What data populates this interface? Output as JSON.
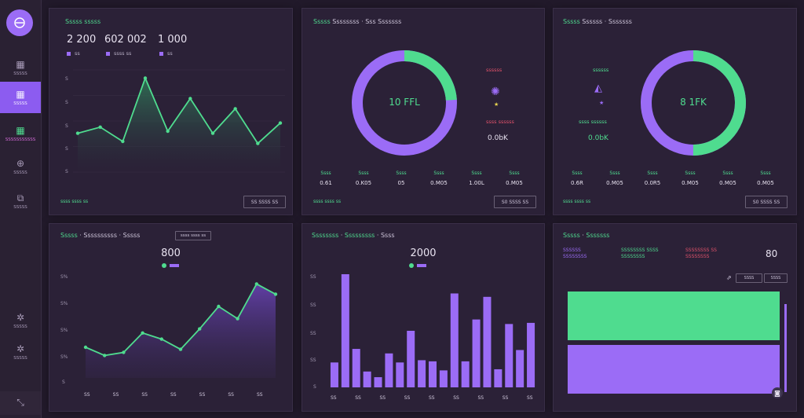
{
  "sidebar": {
    "items": [
      {
        "label": "SSSSS"
      },
      {
        "label": "SSSSS"
      },
      {
        "label": "SSSSSSSSSSS"
      },
      {
        "label": "SSSSS"
      },
      {
        "label": "SSSSS"
      }
    ],
    "bottom_items": [
      {
        "label": "SSSSS"
      },
      {
        "label": "SSSSS"
      }
    ]
  },
  "panel1": {
    "title": "Sssss sssss",
    "stats": [
      "2 200",
      "602 002",
      "1 000"
    ],
    "legend": [
      "ss",
      "ssss ss",
      "ss"
    ],
    "yticks": [
      "S",
      "S",
      "S",
      "S",
      "S"
    ],
    "footer": "ssss ssss ss",
    "button": "SS  SSSS  SS"
  },
  "panel2": {
    "title_a": "Sssss",
    "title_b": "Ssssssss",
    "title_c": "Sss Sssssss",
    "center_value": "10 FFL",
    "legend_top": "ssssss",
    "legend_bottom": "ssss ssssss",
    "side_value": "0.0bK",
    "stat_labels": [
      "Ssss",
      "Ssss",
      "Ssss",
      "Ssss",
      "Ssss",
      "Ssss"
    ],
    "stat_values": [
      "0.61",
      "0.K05",
      "05",
      "0.M05",
      "1.00L",
      "0.M05"
    ],
    "footer": "ssss ssss ss",
    "button": "S0  SSSS  SS"
  },
  "panel3": {
    "title_a": "Sssss",
    "title_b": "Ssssss",
    "title_c": "Sssssss",
    "center_value": "8 1FK",
    "legend_top": "ssssss",
    "legend_bottom": "ssss ssssss",
    "side_value": "0.0bK",
    "stat_labels": [
      "Ssss",
      "Ssss",
      "Ssss",
      "Ssss",
      "Ssss",
      "Ssss"
    ],
    "stat_values": [
      "0.6R",
      "0.M05",
      "0.0R5",
      "0.M05",
      "0.M05",
      "0.M05"
    ],
    "footer": "ssss ssss ss",
    "button": "S0  SSSS  SS"
  },
  "panel4": {
    "title_a": "Sssss",
    "title_b": "Ssssssssss",
    "title_c": "Sssss",
    "dropdown": "ssss ssss ss",
    "value": "800",
    "legend": "ssss",
    "yticks": [
      "S%",
      "S%",
      "S%",
      "S%",
      "S"
    ],
    "xticks": [
      "SS",
      "SS",
      "SS",
      "SS",
      "SS",
      "SS",
      "SS"
    ]
  },
  "panel5": {
    "title_a": "Ssssssss",
    "title_b": "Sssssssss",
    "title_c": "Ssss",
    "value": "2000",
    "legend": "ssss",
    "yticks": [
      "SS",
      "SS",
      "SS",
      "SS",
      "S"
    ],
    "xticks": [
      "SS",
      "SS",
      "SS",
      "SS",
      "SS",
      "SS",
      "SS",
      "SS",
      "SS"
    ]
  },
  "panel6": {
    "title_a": "Sssss",
    "title_b": "Sssssss",
    "col_a": [
      "SSSSSS",
      "SSSSSSSS"
    ],
    "col_b": [
      "SSSSSSSS SSSS",
      "SSSSSSSS"
    ],
    "col_c": [
      "SSSSSSSS SS",
      "SSSSSSSS"
    ],
    "value": "80",
    "button_a": "SSSS",
    "button_b": "SSSS"
  },
  "chart_data": [
    {
      "type": "area",
      "title": "Sssss sssss",
      "x": [
        0,
        1,
        2,
        3,
        4,
        5,
        6,
        7,
        8,
        9
      ],
      "values": [
        38,
        44,
        30,
        92,
        40,
        72,
        38,
        62,
        28,
        48
      ],
      "ylim": [
        0,
        100
      ]
    },
    {
      "type": "pie",
      "title": "Sssss Ssssssss Sss Sssssss",
      "slices": [
        {
          "name": "ssssss",
          "value": 76
        },
        {
          "name": "ssss ssssss",
          "value": 24
        }
      ]
    },
    {
      "type": "pie",
      "title": "Sssss Ssssss Sssssss",
      "slices": [
        {
          "name": "ssssss",
          "value": 50
        },
        {
          "name": "ssss ssssss",
          "value": 50
        }
      ]
    },
    {
      "type": "area",
      "title": "Sssss Ssssssssss Sssss",
      "values": [
        30,
        22,
        25,
        44,
        38,
        28,
        48,
        70,
        58,
        92,
        82
      ],
      "ylim": [
        0,
        100
      ]
    },
    {
      "type": "bar",
      "title": "Ssssssss Sssssssss Ssss",
      "values": [
        22,
        100,
        34,
        14,
        9,
        30,
        22,
        50,
        24,
        23,
        15,
        83,
        23,
        60,
        80,
        16,
        56,
        33,
        57
      ],
      "ylim": [
        0,
        100
      ]
    },
    {
      "type": "bar",
      "title": "Sssss Sssssss",
      "series": [
        {
          "name": "green",
          "values": [
            100
          ]
        },
        {
          "name": "purple",
          "values": [
            100
          ]
        }
      ]
    }
  ]
}
